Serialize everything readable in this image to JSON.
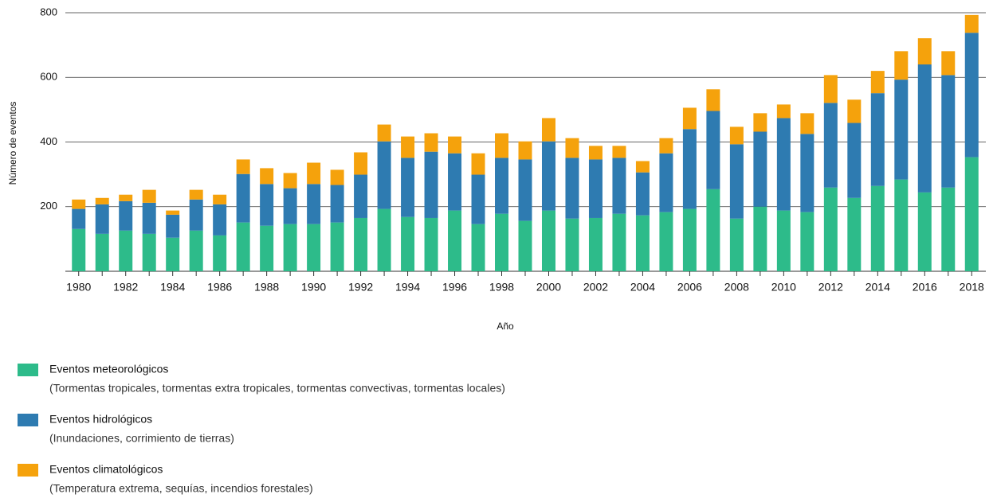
{
  "chart_data": {
    "type": "stacked_bar",
    "y_label": "Número de eventos",
    "x_label": "Año",
    "categories": [
      "1980",
      null,
      "1982",
      null,
      "1984",
      null,
      "1986",
      null,
      "1988",
      null,
      "1990",
      null,
      "1992",
      null,
      "1994",
      null,
      "1996",
      null,
      "1998",
      null,
      "2000",
      null,
      "2002",
      null,
      "2004",
      null,
      "2006",
      null,
      "2008",
      null,
      "2010",
      null,
      "2012",
      null,
      "2014",
      null,
      "2016",
      null,
      "2018"
    ],
    "series": [
      {
        "name": "Eventos meteorológicos",
        "description": "(Tormentas tropicales, tormentas extra tropicales, tormentas convectivas, tormentas locales)",
        "color": "#2dbb8a",
        "values": [
          131,
          116,
          126,
          116,
          104,
          126,
          111,
          151,
          141,
          146,
          146,
          151,
          165,
          193,
          168,
          165,
          188,
          146,
          178,
          156,
          188,
          163,
          165,
          178,
          173,
          183,
          193,
          254,
          163,
          200,
          188,
          183,
          259,
          227,
          264,
          284,
          244,
          259,
          353
        ]
      },
      {
        "name": "Eventos hidrológicos",
        "description": "(Inundaciones, corrimiento de tierras)",
        "color": "#2e7bb1",
        "values": [
          62,
          91,
          91,
          96,
          71,
          96,
          96,
          150,
          129,
          111,
          124,
          116,
          134,
          209,
          183,
          205,
          177,
          153,
          173,
          190,
          214,
          188,
          181,
          173,
          133,
          182,
          247,
          242,
          230,
          232,
          286,
          242,
          262,
          232,
          287,
          309,
          396,
          348,
          385
        ]
      },
      {
        "name": "Eventos climatológicos",
        "description": "(Temperatura extrema, sequías, incendios forestales)",
        "color": "#f5a20c",
        "values": [
          29,
          20,
          20,
          40,
          13,
          30,
          30,
          45,
          49,
          47,
          66,
          47,
          69,
          52,
          66,
          57,
          52,
          66,
          76,
          56,
          72,
          61,
          42,
          37,
          35,
          47,
          66,
          67,
          54,
          57,
          42,
          64,
          86,
          72,
          69,
          88,
          81,
          74,
          55
        ]
      }
    ],
    "ylim": [
      0,
      800
    ],
    "yticks": [
      200,
      400,
      600,
      800
    ],
    "grid": true
  }
}
